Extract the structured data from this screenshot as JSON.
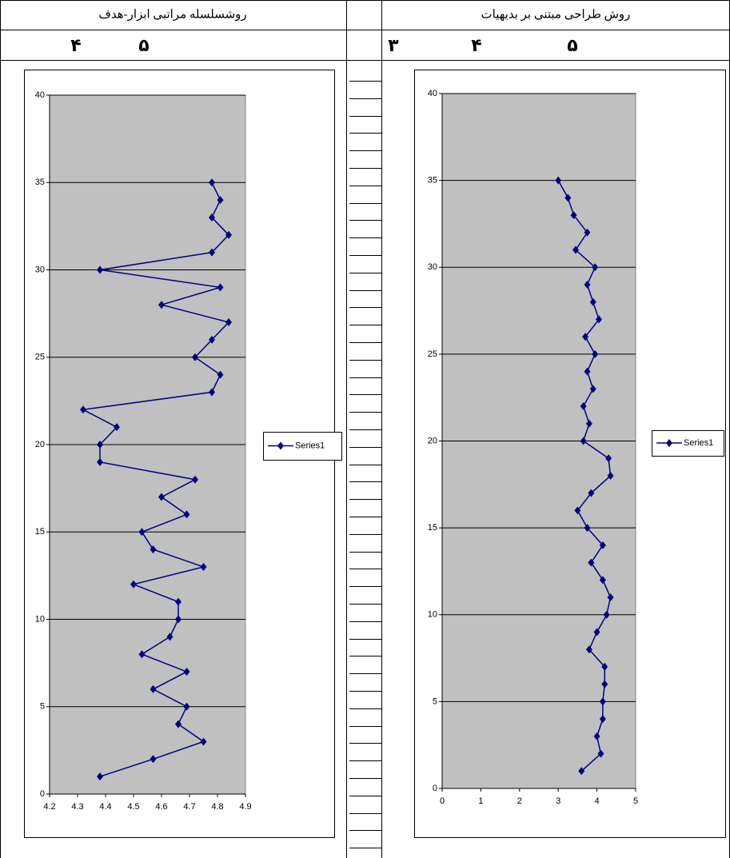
{
  "table": {
    "headers": [
      "روشسلسله مراتبی ابزار-هدف",
      "روش طراحی مبتنی بر بدیهیات"
    ],
    "digits_left": [
      "۴",
      "۵"
    ],
    "digits_right": [
      "۳",
      "۴",
      "۵"
    ]
  },
  "chart_data": [
    {
      "type": "line",
      "x": [
        4.38,
        4.57,
        4.75,
        4.66,
        4.69,
        4.57,
        4.69,
        4.53,
        4.63,
        4.66,
        4.66,
        4.5,
        4.75,
        4.57,
        4.53,
        4.69,
        4.6,
        4.72,
        4.38,
        4.38,
        4.44,
        4.32,
        4.78,
        4.81,
        4.72,
        4.78,
        4.84,
        4.6,
        4.81,
        4.38,
        4.78,
        4.84,
        4.78,
        4.81,
        4.78
      ],
      "series": [
        {
          "name": "Series1",
          "color": "#000080",
          "values": [
            1,
            2,
            3,
            4,
            5,
            6,
            7,
            8,
            9,
            10,
            11,
            12,
            13,
            14,
            15,
            16,
            17,
            18,
            19,
            20,
            21,
            22,
            23,
            24,
            25,
            26,
            27,
            28,
            29,
            30,
            31,
            32,
            33,
            34,
            35
          ]
        }
      ],
      "xlim": [
        4.2,
        4.9
      ],
      "xticks": [
        4.2,
        4.3,
        4.4,
        4.5,
        4.6,
        4.7,
        4.8,
        4.9
      ],
      "ylim": [
        0,
        40
      ],
      "yticks": [
        0,
        5,
        10,
        15,
        20,
        25,
        30,
        35,
        40
      ],
      "grid": true,
      "legend": "right"
    },
    {
      "type": "line",
      "x": [
        3.6,
        4.1,
        4.0,
        4.15,
        4.15,
        4.2,
        4.2,
        3.8,
        4.0,
        4.25,
        4.35,
        4.15,
        3.85,
        4.15,
        3.75,
        3.5,
        3.85,
        4.35,
        4.3,
        3.65,
        3.8,
        3.65,
        3.9,
        3.75,
        3.95,
        3.7,
        4.05,
        3.9,
        3.75,
        3.95,
        3.45,
        3.75,
        3.4,
        3.25,
        3.0
      ],
      "series": [
        {
          "name": "Series1",
          "color": "#000080",
          "values": [
            1,
            2,
            3,
            4,
            5,
            6,
            7,
            8,
            9,
            10,
            11,
            12,
            13,
            14,
            15,
            16,
            17,
            18,
            19,
            20,
            21,
            22,
            23,
            24,
            25,
            26,
            27,
            28,
            29,
            30,
            31,
            32,
            33,
            34,
            35
          ]
        }
      ],
      "xlim": [
        0,
        5
      ],
      "xticks": [
        0,
        1,
        2,
        3,
        4,
        5
      ],
      "ylim": [
        0,
        40
      ],
      "yticks": [
        0,
        5,
        10,
        15,
        20,
        25,
        30,
        35,
        40
      ],
      "grid": true,
      "legend": "right"
    }
  ]
}
